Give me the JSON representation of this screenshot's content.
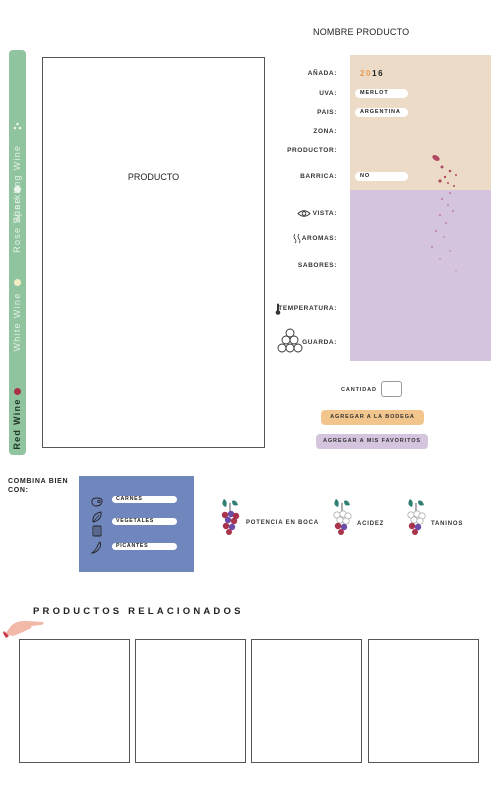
{
  "header": {
    "title": "NOMBRE PRODUCTO"
  },
  "wine_types": [
    {
      "label": "Sparkling Wine",
      "dot_color": "#eaf3ec"
    },
    {
      "label": "Rose Wine",
      "dot_color": "#eed6c6"
    },
    {
      "label": "White Wine",
      "dot_color": "#f4ecc4"
    },
    {
      "label": "Red Wine",
      "dot_color": "#a8334a"
    }
  ],
  "product": {
    "image_label": "PRODUCTO"
  },
  "details": {
    "anada_label": "AÑADA:",
    "anada_prefix": "20",
    "anada_suffix": "16",
    "uva_label": "UVA:",
    "uva_value": "MERLOT",
    "pais_label": "PAIS:",
    "pais_value": "ARGENTINA",
    "zona_label": "ZONA:",
    "productor_label": "PRODUCTOR:",
    "barrica_label": "BARRICA:",
    "barrica_value": "NO",
    "vista_label": "VISTA:",
    "aromas_label": "AROMAS:",
    "sabores_label": "SABORES:",
    "temperatura_label": "TEMPERATURA:",
    "guarda_label": "GUARDA:"
  },
  "purchase": {
    "cantidad_label": "CANTIDAD",
    "cantidad_value": "",
    "add_cellar_label": "AGREGAR A LA BODEGA",
    "add_favorites_label": "AGREGAR A MIS FAVORITOS"
  },
  "pairing": {
    "title": "COMBINA BIEN CON:",
    "items": [
      {
        "label": "CARNES",
        "icon": "steak-icon"
      },
      {
        "label": "VEGETALES",
        "icon": "leaf-icon"
      },
      {
        "label": "",
        "icon": "cheese-icon"
      },
      {
        "label": "PICANTES",
        "icon": "chili-icon"
      }
    ]
  },
  "metrics": [
    {
      "label": "POTENCIA EN BOCA",
      "icon": "grape-bunch-icon"
    },
    {
      "label": "ACIDEZ",
      "icon": "grape-bunch-icon"
    },
    {
      "label": "TANINOS",
      "icon": "grape-bunch-icon"
    }
  ],
  "related": {
    "title": "PRODUCTOS RELACIONADOS",
    "cards": [
      "",
      "",
      "",
      ""
    ]
  },
  "colors": {
    "panel_top": "#ecdcc7",
    "panel_bottom": "#d4c4de",
    "pairing_bg": "#7087bd",
    "tabs_bg": "#8fc49e",
    "cellar_btn": "#f2c58c",
    "favorites_btn": "#d4c4de"
  }
}
